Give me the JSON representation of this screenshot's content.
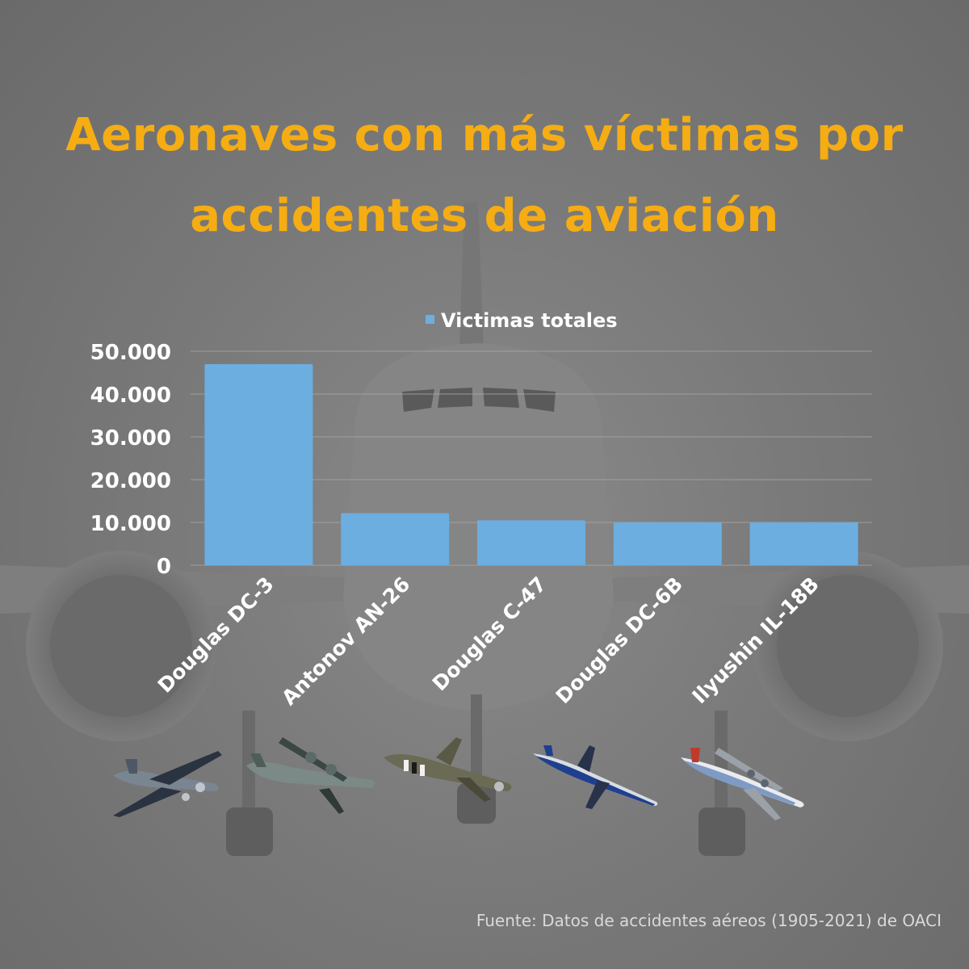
{
  "title_lines": [
    "Aeronaves con más víctimas por",
    "accidentes de aviación"
  ],
  "source": "Fuente: Datos de accidentes aéreos  (1905-2021) de OACI",
  "colors": {
    "title": "#f5ad13",
    "bar": "#6caee0",
    "axis_text": "#ffffff",
    "gridline": "#a8a8a8",
    "source_text": "#d9d9d9"
  },
  "aircraft_icons": [
    "douglas-dc-3-plane-icon",
    "antonov-an-26-plane-icon",
    "douglas-c-47-plane-icon",
    "douglas-dc-6b-plane-icon",
    "ilyushin-il-18b-plane-icon"
  ],
  "chart_data": {
    "type": "bar",
    "categories": [
      "Douglas DC-3",
      "Antonov AN-26",
      "Douglas C-47",
      "Douglas DC-6B",
      "Ilyushin IL-18B"
    ],
    "series": [
      {
        "name": "Victimas totales",
        "values": [
          47000,
          12200,
          10500,
          10000,
          10000
        ]
      }
    ],
    "ylim": [
      0,
      50000
    ],
    "yticks": [
      0,
      10000,
      20000,
      30000,
      40000,
      50000
    ],
    "ytick_labels": [
      "0",
      "10.000",
      "20.000",
      "30.000",
      "40.000",
      "50.000"
    ],
    "legend": "top-center",
    "grid": true
  }
}
